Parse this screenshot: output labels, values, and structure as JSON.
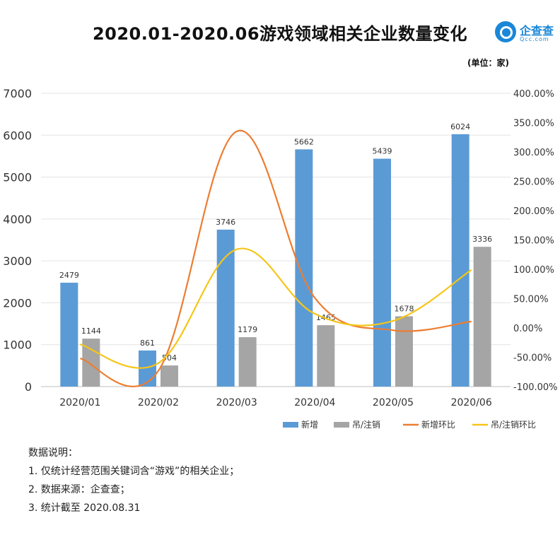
{
  "title": "2020.01-2020.06游戏领域相关企业数量变化",
  "logo": {
    "name": "企查查",
    "sub": "Qcc.com"
  },
  "unit_label": "(单位：家)",
  "chart_data": {
    "type": "bar",
    "categories": [
      "2020/01",
      "2020/02",
      "2020/03",
      "2020/04",
      "2020/05",
      "2020/06"
    ],
    "series": [
      {
        "name": "新增",
        "kind": "bar",
        "axis": "left",
        "color": "#5b9bd5",
        "values": [
          2479,
          861,
          3746,
          5662,
          5439,
          6024
        ]
      },
      {
        "name": "吊/注销",
        "kind": "bar",
        "axis": "left",
        "color": "#a5a5a5",
        "values": [
          1144,
          504,
          1179,
          1465,
          1678,
          3336
        ]
      },
      {
        "name": "新增环比",
        "kind": "line",
        "axis": "right",
        "color": "#ed7d31",
        "values": [
          -52,
          -73,
          335,
          51,
          -4,
          11
        ]
      },
      {
        "name": "吊/注销环比",
        "kind": "line",
        "axis": "right",
        "color": "#f5c518",
        "values": [
          -28,
          -60,
          134,
          24,
          12,
          99
        ]
      }
    ],
    "y_left": {
      "min": 0,
      "max": 7000,
      "ticks": [
        0,
        1000,
        2000,
        3000,
        4000,
        5000,
        6000,
        7000
      ]
    },
    "y_right": {
      "min": -100,
      "max": 400,
      "ticks": [
        -100,
        -50,
        0,
        50,
        100,
        150,
        200,
        250,
        300,
        350,
        400
      ],
      "tick_labels": [
        "-100.00%",
        "-50.00%",
        "0.00%",
        "50.00%",
        "100.00%",
        "150.00%",
        "200.00%",
        "250.00%",
        "300.00%",
        "350.00%",
        "400.00%"
      ]
    },
    "grid": true,
    "legend_position": "bottom-right"
  },
  "notes": {
    "heading": "数据说明：",
    "items": [
      "1. 仅统计经营范围关键词含“游戏”的相关企业；",
      "2. 数据来源：企查查；",
      "3. 统计截至 2020.08.31"
    ]
  }
}
